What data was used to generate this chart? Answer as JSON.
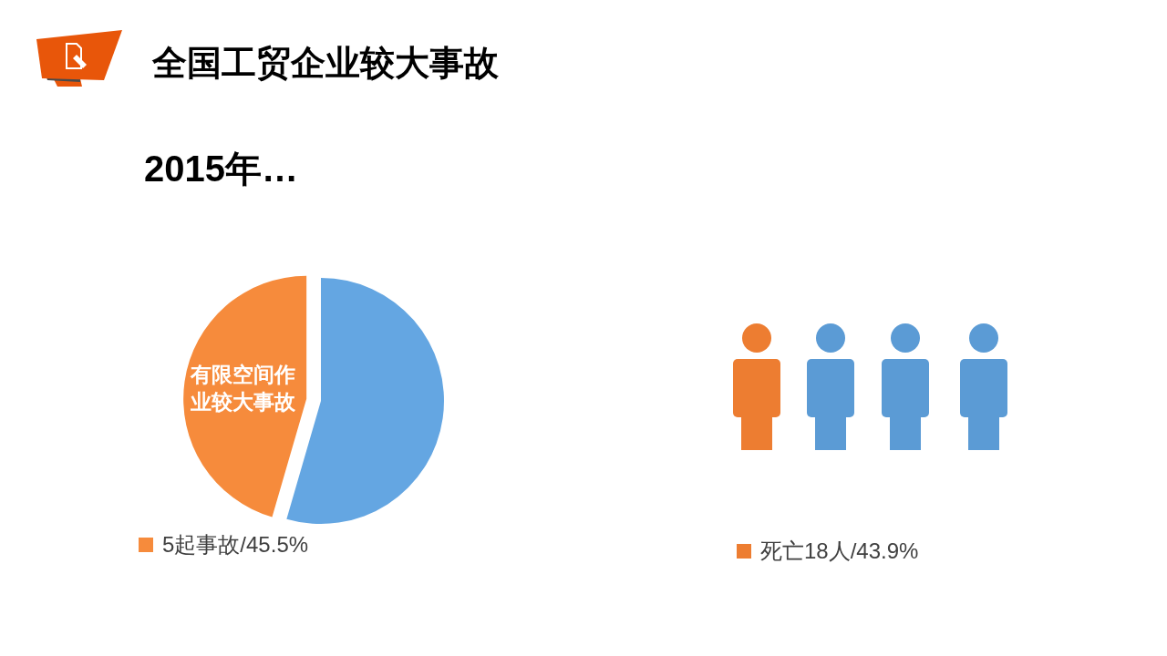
{
  "chart_data": [
    {
      "type": "pie",
      "title": "全国工贸企业较大事故",
      "subtitle": "2015年…",
      "categories": [
        "5起事故/45.5%",
        null
      ],
      "values": [
        45.5,
        54.5
      ],
      "colors": [
        "#f68b3c",
        "#64a6e2"
      ],
      "legend": "bottom",
      "annotations": [
        "有限空间作业较大事故"
      ]
    },
    {
      "type": "other",
      "categories": [
        "死亡18人/43.9%"
      ],
      "colors": [
        "#ed7d31"
      ]
    }
  ]
}
